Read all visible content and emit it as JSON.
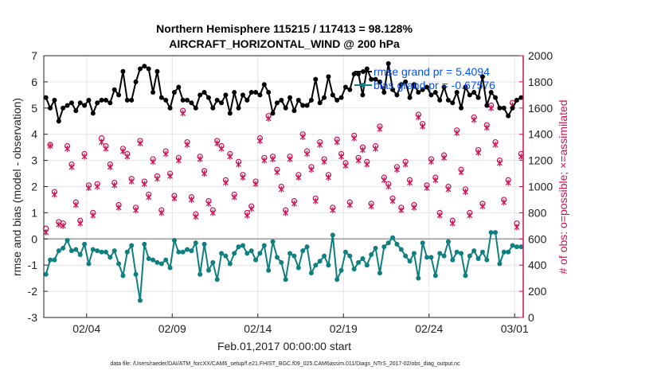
{
  "chart_data": {
    "type": "line",
    "title": "Northern Hemisphere 115215 / 117413 = 98.128%",
    "subtitle": "AIRCRAFT_HORIZONTAL_WIND @ 200 hPa",
    "xlabel": "Feb.01,2017 00:00:00 start",
    "ylabel_left": "rmse and bias (model - observation)",
    "ylabel_right": "# of obs: o=possible; ×=assimilated",
    "footnote": "data file: /Users/raeder/DAI/ATM_forcXX/CAM6_setup/f.e21.FHIST_BGC.f09_025.CAM6assim.011/Diags_NTrS_2017-02/obs_diag_output.nc",
    "xlim": [
      0.5,
      28.5
    ],
    "ylim_left": [
      -3,
      7
    ],
    "ylim_right": [
      0,
      2000
    ],
    "grid": true,
    "x_ticks": [
      {
        "value": 3,
        "label": "02/04"
      },
      {
        "value": 8,
        "label": "02/09"
      },
      {
        "value": 13,
        "label": "02/14"
      },
      {
        "value": 18,
        "label": "02/19"
      },
      {
        "value": 23,
        "label": "02/24"
      },
      {
        "value": 28,
        "label": "03/01"
      }
    ],
    "y_ticks_left": [
      "-3",
      "-2",
      "-1",
      "0",
      "1",
      "2",
      "3",
      "4",
      "5",
      "6",
      "7"
    ],
    "y_ticks_right": [
      "0",
      "200",
      "400",
      "600",
      "800",
      "1000",
      "1200",
      "1400",
      "1600",
      "1800",
      "2000"
    ],
    "legend": {
      "position": "top-right",
      "entries": [
        {
          "label": "rmse grand pr = 5.4094",
          "color": "#000000"
        },
        {
          "label": "bias grand pr = -0.67576",
          "color": "#0f7f7f"
        }
      ]
    },
    "colors": {
      "rmse": "#000000",
      "bias": "#0f7f7f",
      "obs": "#cc1155",
      "zero_line": "#999999"
    },
    "series": [
      {
        "name": "rmse grand pr = 5.4094",
        "axis": "left",
        "x": [
          0.625,
          0.875,
          1.125,
          1.375,
          1.625,
          1.875,
          2.125,
          2.375,
          2.625,
          2.875,
          3.125,
          3.375,
          3.625,
          3.875,
          4.125,
          4.375,
          4.625,
          4.875,
          5.125,
          5.375,
          5.625,
          5.875,
          6.125,
          6.375,
          6.625,
          6.875,
          7.125,
          7.375,
          7.625,
          7.875,
          8.125,
          8.375,
          8.625,
          8.875,
          9.125,
          9.375,
          9.625,
          9.875,
          10.125,
          10.375,
          10.625,
          10.875,
          11.125,
          11.375,
          11.625,
          11.875,
          12.125,
          12.375,
          12.625,
          12.875,
          13.125,
          13.375,
          13.625,
          13.875,
          14.125,
          14.375,
          14.625,
          14.875,
          15.125,
          15.375,
          15.625,
          15.875,
          16.125,
          16.375,
          16.625,
          16.875,
          17.125,
          17.375,
          17.625,
          17.875,
          18.125,
          18.375,
          18.625,
          18.875,
          19.125,
          19.375,
          19.625,
          19.875,
          20.125,
          20.375,
          20.625,
          20.875,
          21.125,
          21.375,
          21.625,
          21.875,
          22.125,
          22.375,
          22.625,
          22.875,
          23.125,
          23.375,
          23.625,
          23.875,
          24.125,
          24.375,
          24.625,
          24.875,
          25.125,
          25.375,
          25.625,
          25.875,
          26.125,
          26.375,
          26.625,
          26.875,
          27.125,
          27.375,
          27.625,
          27.875,
          28.125,
          28.375
        ],
        "values": [
          5.4,
          5.0,
          5.3,
          4.5,
          5.0,
          5.1,
          5.2,
          4.9,
          5.2,
          5.1,
          5.3,
          4.8,
          5.2,
          5.3,
          5.3,
          5.2,
          5.7,
          5.5,
          6.4,
          5.3,
          5.3,
          6.0,
          6.5,
          6.6,
          6.5,
          5.6,
          6.4,
          5.4,
          5.3,
          5.0,
          5.6,
          5.8,
          5.3,
          5.3,
          5.2,
          5.0,
          5.5,
          5.6,
          5.4,
          5.0,
          5.3,
          5.2,
          5.5,
          4.8,
          5.6,
          5.0,
          5.5,
          5.3,
          5.6,
          5.6,
          5.5,
          5.9,
          5.6,
          4.8,
          5.2,
          5.3,
          5.0,
          5.4,
          4.9,
          5.3,
          5.1,
          5.1,
          5.3,
          6.1,
          5.2,
          5.4,
          6.2,
          5.5,
          5.3,
          5.4,
          5.8,
          5.7,
          6.3,
          6.3,
          5.5,
          6.5,
          6.1,
          6.1,
          6.0,
          5.6,
          6.7,
          5.7,
          5.5,
          5.9,
          6.0,
          5.4,
          5.9,
          5.6,
          5.7,
          5.8,
          5.5,
          5.6,
          5.3,
          5.8,
          5.3,
          5.2,
          5.6,
          5.0,
          5.8,
          5.5,
          5.6,
          5.4,
          6.2,
          5.1,
          5.6,
          5.4,
          5.0,
          5.0,
          4.7,
          5.0,
          5.3,
          5.4
        ]
      },
      {
        "name": "bias grand pr = -0.67576",
        "axis": "left",
        "x": [
          0.625,
          0.875,
          1.125,
          1.375,
          1.625,
          1.875,
          2.125,
          2.375,
          2.625,
          2.875,
          3.125,
          3.375,
          3.625,
          3.875,
          4.125,
          4.375,
          4.625,
          4.875,
          5.125,
          5.375,
          5.625,
          5.875,
          6.125,
          6.375,
          6.625,
          6.875,
          7.125,
          7.375,
          7.625,
          7.875,
          8.125,
          8.375,
          8.625,
          8.875,
          9.125,
          9.375,
          9.625,
          9.875,
          10.125,
          10.375,
          10.625,
          10.875,
          11.125,
          11.375,
          11.625,
          11.875,
          12.125,
          12.375,
          12.625,
          12.875,
          13.125,
          13.375,
          13.625,
          13.875,
          14.125,
          14.375,
          14.625,
          14.875,
          15.125,
          15.375,
          15.625,
          15.875,
          16.125,
          16.375,
          16.625,
          16.875,
          17.125,
          17.375,
          17.625,
          17.875,
          18.125,
          18.375,
          18.625,
          18.875,
          19.125,
          19.375,
          19.625,
          19.875,
          20.125,
          20.375,
          20.625,
          20.875,
          21.125,
          21.375,
          21.625,
          21.875,
          22.125,
          22.375,
          22.625,
          22.875,
          23.125,
          23.375,
          23.625,
          23.875,
          24.125,
          24.375,
          24.625,
          24.875,
          25.125,
          25.375,
          25.625,
          25.875,
          26.125,
          26.375,
          26.625,
          26.875,
          27.125,
          27.375,
          27.625,
          27.875,
          28.125,
          28.375
        ],
        "values": [
          -1.35,
          -0.8,
          -0.8,
          -0.45,
          -0.35,
          -0.05,
          -0.45,
          -0.4,
          -0.6,
          -0.2,
          -0.95,
          -0.4,
          -0.45,
          -0.5,
          -0.5,
          -0.7,
          -0.45,
          -0.95,
          -1.4,
          -0.5,
          -0.25,
          -1.35,
          -2.35,
          -0.2,
          -0.75,
          -0.8,
          -0.9,
          -0.95,
          -0.8,
          -1.1,
          -0.05,
          -0.5,
          -0.5,
          -0.4,
          -0.45,
          -0.15,
          -1.35,
          -0.2,
          -1.2,
          -0.9,
          -1.55,
          -0.55,
          -0.65,
          -0.95,
          -0.55,
          -0.3,
          -0.25,
          -0.55,
          -0.45,
          -0.8,
          -0.55,
          -0.25,
          -1.2,
          -0.1,
          -0.7,
          -0.9,
          -1.55,
          -0.55,
          -0.65,
          -1.1,
          -0.45,
          -0.3,
          -1.3,
          -1.0,
          -0.85,
          -0.65,
          -1.0,
          0.15,
          -1.55,
          -1.2,
          -0.5,
          -0.65,
          -1.15,
          -0.9,
          -0.75,
          -1.0,
          -0.6,
          -0.35,
          -1.3,
          -0.3,
          -0.15,
          0.05,
          -0.2,
          -0.4,
          -0.65,
          -0.85,
          -0.55,
          -1.5,
          -0.15,
          -0.7,
          -0.7,
          -1.4,
          -0.55,
          -0.65,
          -0.1,
          -0.8,
          -0.5,
          -0.55,
          -1.4,
          -0.65,
          -0.45,
          -0.75,
          -0.5,
          -0.8,
          0.25,
          0.25,
          -0.95,
          -0.5,
          -0.5,
          -0.25,
          -0.3,
          -0.3
        ]
      },
      {
        "name": "possible",
        "axis": "right",
        "x": [
          0.625,
          0.875,
          1.125,
          1.375,
          1.625,
          1.875,
          2.125,
          2.375,
          2.625,
          2.875,
          3.125,
          3.375,
          3.625,
          3.875,
          4.125,
          4.375,
          4.625,
          4.875,
          5.125,
          5.375,
          5.625,
          5.875,
          6.125,
          6.375,
          6.625,
          6.875,
          7.125,
          7.375,
          7.625,
          7.875,
          8.125,
          8.375,
          8.625,
          8.875,
          9.125,
          9.375,
          9.625,
          9.875,
          10.125,
          10.375,
          10.625,
          10.875,
          11.125,
          11.375,
          11.625,
          11.875,
          12.125,
          12.375,
          12.625,
          12.875,
          13.125,
          13.375,
          13.625,
          13.875,
          14.125,
          14.375,
          14.625,
          14.875,
          15.125,
          15.375,
          15.625,
          15.875,
          16.125,
          16.375,
          16.625,
          16.875,
          17.125,
          17.375,
          17.625,
          17.875,
          18.125,
          18.375,
          18.625,
          18.875,
          19.125,
          19.375,
          19.625,
          19.875,
          20.125,
          20.375,
          20.625,
          20.875,
          21.125,
          21.375,
          21.625,
          21.875,
          22.125,
          22.375,
          22.625,
          22.875,
          23.125,
          23.375,
          23.625,
          23.875,
          24.125,
          24.375,
          24.625,
          24.875,
          25.125,
          25.375,
          25.625,
          25.875,
          26.125,
          26.375,
          26.625,
          26.875,
          27.125,
          27.375,
          27.625,
          27.875,
          28.125,
          28.375
        ],
        "values": [
          680,
          1320,
          960,
          730,
          720,
          1310,
          1170,
          880,
          740,
          1250,
          1010,
          800,
          1020,
          1370,
          1310,
          1170,
          1030,
          860,
          1290,
          1250,
          1060,
          840,
          1350,
          1040,
          940,
          1210,
          1080,
          820,
          1270,
          1100,
          930,
          1220,
          1580,
          1340,
          920,
          790,
          1230,
          1120,
          890,
          820,
          1350,
          1310,
          1050,
          1250,
          940,
          1190,
          1090,
          800,
          850,
          1040,
          1370,
          1220,
          1540,
          1230,
          1130,
          1000,
          820,
          1230,
          890,
          1090,
          1400,
          1270,
          1150,
          910,
          1340,
          1210,
          1090,
          840,
          1360,
          1250,
          1180,
          880,
          1390,
          1220,
          1300,
          1190,
          870,
          1310,
          1460,
          1070,
          1020,
          910,
          1150,
          840,
          1190,
          1050,
          860,
          1550,
          1480,
          1010,
          1210,
          1070,
          800,
          1240,
          1000,
          740,
          1430,
          1130,
          980,
          800,
          1530,
          1280,
          870,
          1470,
          1620,
          1340,
          1200,
          900,
          1050,
          1640,
          720,
          1250
        ]
      },
      {
        "name": "assimilated",
        "axis": "right",
        "x": [
          0.625,
          0.875,
          1.125,
          1.375,
          1.625,
          1.875,
          2.125,
          2.375,
          2.625,
          2.875,
          3.125,
          3.375,
          3.625,
          3.875,
          4.125,
          4.375,
          4.625,
          4.875,
          5.125,
          5.375,
          5.625,
          5.875,
          6.125,
          6.375,
          6.625,
          6.875,
          7.125,
          7.375,
          7.625,
          7.875,
          8.125,
          8.375,
          8.625,
          8.875,
          9.125,
          9.375,
          9.625,
          9.875,
          10.125,
          10.375,
          10.625,
          10.875,
          11.125,
          11.375,
          11.625,
          11.875,
          12.125,
          12.375,
          12.625,
          12.875,
          13.125,
          13.375,
          13.625,
          13.875,
          14.125,
          14.375,
          14.625,
          14.875,
          15.125,
          15.375,
          15.625,
          15.875,
          16.125,
          16.375,
          16.625,
          16.875,
          17.125,
          17.375,
          17.625,
          17.875,
          18.125,
          18.375,
          18.625,
          18.875,
          19.125,
          19.375,
          19.625,
          19.875,
          20.125,
          20.375,
          20.625,
          20.875,
          21.125,
          21.375,
          21.625,
          21.875,
          22.125,
          22.375,
          22.625,
          22.875,
          23.125,
          23.375,
          23.625,
          23.875,
          24.125,
          24.375,
          24.625,
          24.875,
          25.125,
          25.375,
          25.625,
          25.875,
          26.125,
          26.375,
          26.625,
          26.875,
          27.125,
          27.375,
          27.625,
          27.875,
          28.125,
          28.375
        ],
        "values": [
          650,
          1310,
          940,
          710,
          700,
          1290,
          1150,
          860,
          720,
          1230,
          990,
          780,
          1000,
          1340,
          1290,
          1150,
          1010,
          840,
          1270,
          1230,
          1040,
          820,
          1330,
          1020,
          920,
          1190,
          1060,
          800,
          1250,
          1080,
          910,
          1200,
          1560,
          1320,
          900,
          770,
          1210,
          1100,
          870,
          800,
          1330,
          1290,
          1030,
          1230,
          920,
          1170,
          1070,
          780,
          830,
          1020,
          1350,
          1200,
          1520,
          1210,
          1110,
          980,
          800,
          1210,
          870,
          1070,
          1380,
          1250,
          1130,
          890,
          1320,
          1190,
          1070,
          820,
          1340,
          1230,
          1160,
          860,
          1370,
          1200,
          1280,
          1170,
          850,
          1290,
          1440,
          1050,
          1000,
          890,
          1130,
          820,
          1170,
          1030,
          840,
          1530,
          1460,
          990,
          1190,
          1050,
          780,
          1220,
          980,
          720,
          1410,
          1110,
          960,
          780,
          1510,
          1260,
          850,
          1450,
          1600,
          1320,
          1180,
          880,
          1030,
          1620,
          690,
          1230
        ]
      }
    ]
  }
}
